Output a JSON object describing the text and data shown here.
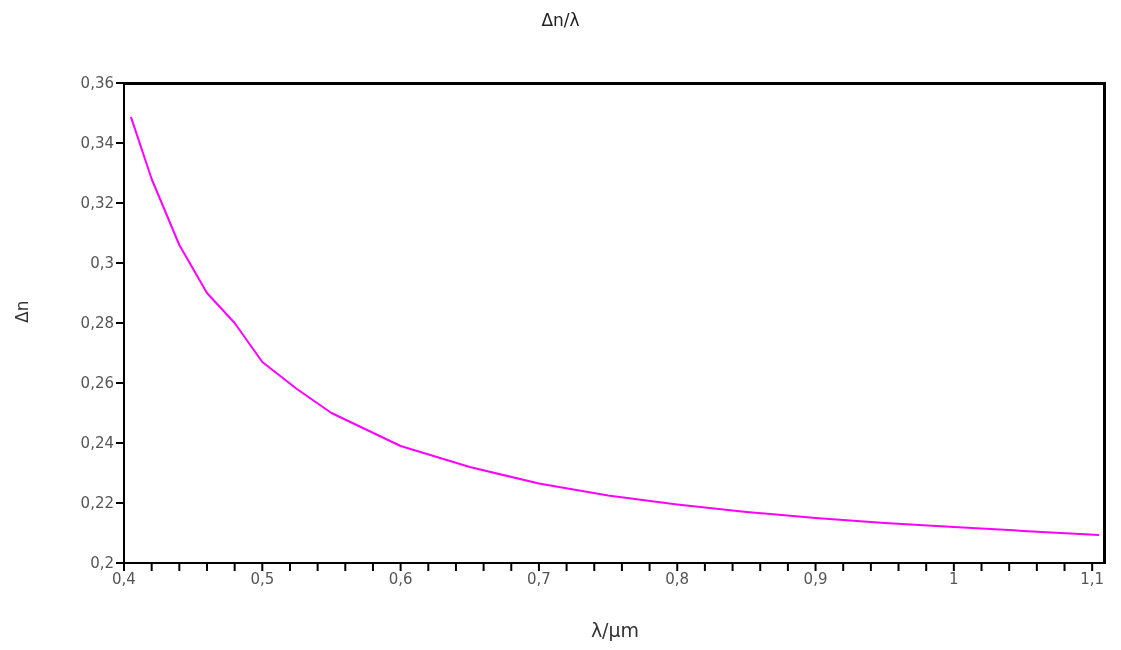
{
  "chart_data": {
    "type": "line",
    "title": "Δn/λ",
    "xlabel": "λ/µm",
    "ylabel": "Δn",
    "x": [
      0.405,
      0.42,
      0.44,
      0.46,
      0.48,
      0.5,
      0.525,
      0.55,
      0.6,
      0.65,
      0.7,
      0.75,
      0.8,
      0.85,
      0.9,
      0.95,
      1.0,
      1.05,
      1.105
    ],
    "series": [
      {
        "color": "#ff00ff",
        "values": [
          0.3487,
          0.328,
          0.306,
          0.29,
          0.28,
          0.267,
          0.258,
          0.25,
          0.239,
          0.232,
          0.2265,
          0.2225,
          0.2195,
          0.217,
          0.215,
          0.2133,
          0.212,
          0.2107,
          0.2093
        ]
      }
    ],
    "xlim": [
      0.4,
      1.11
    ],
    "xticks": [
      {
        "value": 0.4,
        "label": "0,4"
      },
      {
        "value": 0.42,
        "label": null
      },
      {
        "value": 0.44,
        "label": null
      },
      {
        "value": 0.46,
        "label": null
      },
      {
        "value": 0.48,
        "label": null
      },
      {
        "value": 0.5,
        "label": "0,5"
      },
      {
        "value": 0.52,
        "label": null
      },
      {
        "value": 0.54,
        "label": null
      },
      {
        "value": 0.56,
        "label": null
      },
      {
        "value": 0.58,
        "label": null
      },
      {
        "value": 0.6,
        "label": "0,6"
      },
      {
        "value": 0.62,
        "label": null
      },
      {
        "value": 0.64,
        "label": null
      },
      {
        "value": 0.66,
        "label": null
      },
      {
        "value": 0.68,
        "label": null
      },
      {
        "value": 0.7,
        "label": "0,7"
      },
      {
        "value": 0.72,
        "label": null
      },
      {
        "value": 0.74,
        "label": null
      },
      {
        "value": 0.76,
        "label": null
      },
      {
        "value": 0.78,
        "label": null
      },
      {
        "value": 0.8,
        "label": "0,8"
      },
      {
        "value": 0.82,
        "label": null
      },
      {
        "value": 0.84,
        "label": null
      },
      {
        "value": 0.86,
        "label": null
      },
      {
        "value": 0.88,
        "label": null
      },
      {
        "value": 0.9,
        "label": "0,9"
      },
      {
        "value": 0.92,
        "label": null
      },
      {
        "value": 0.94,
        "label": null
      },
      {
        "value": 0.96,
        "label": null
      },
      {
        "value": 0.98,
        "label": null
      },
      {
        "value": 1,
        "label": "1"
      },
      {
        "value": 1.02,
        "label": null
      },
      {
        "value": 1.04,
        "label": null
      },
      {
        "value": 1.06,
        "label": null
      },
      {
        "value": 1.08,
        "label": null
      },
      {
        "value": 1.1,
        "label": "1,1"
      }
    ],
    "ylim": [
      0.2,
      0.36
    ],
    "yticks": [
      {
        "value": 0.2,
        "label": "0,2"
      },
      {
        "value": 0.22,
        "label": "0,22"
      },
      {
        "value": 0.24,
        "label": "0,24"
      },
      {
        "value": 0.26,
        "label": "0,26"
      },
      {
        "value": 0.28,
        "label": "0,28"
      },
      {
        "value": 0.3,
        "label": "0,3"
      },
      {
        "value": 0.32,
        "label": "0,32"
      },
      {
        "value": 0.34,
        "label": "0,34"
      },
      {
        "value": 0.36,
        "label": "0,36"
      }
    ],
    "grid": false,
    "legend": false,
    "marker": "none",
    "line_style": "solid"
  }
}
